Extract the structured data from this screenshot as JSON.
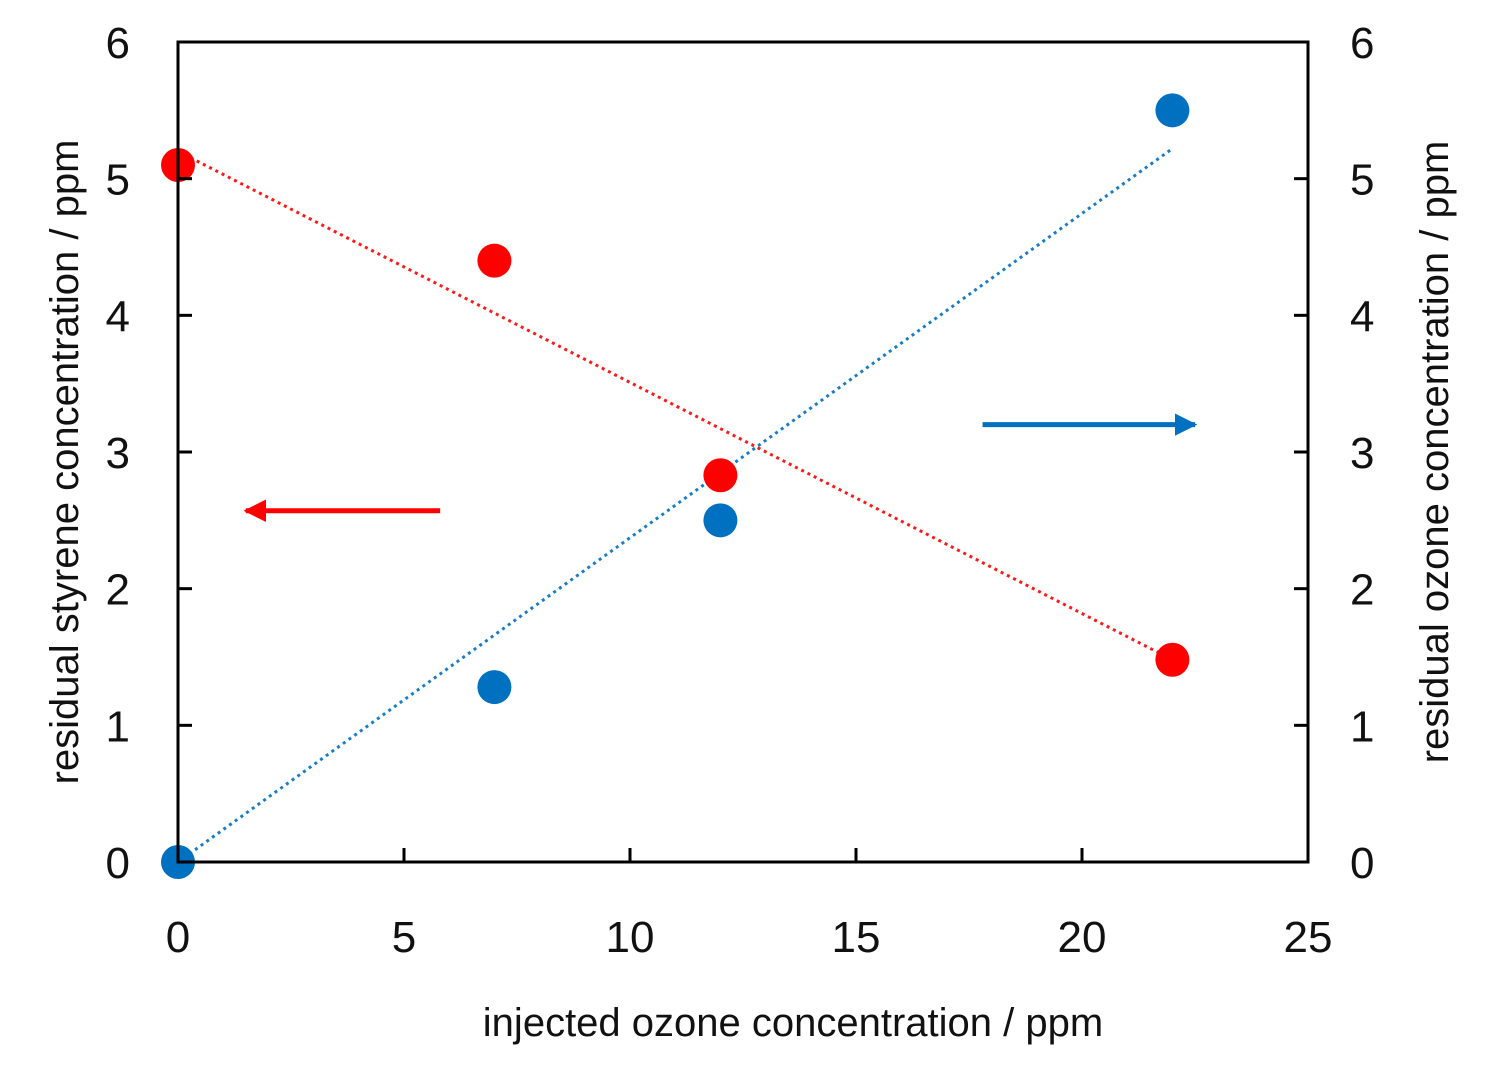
{
  "chart_data": {
    "type": "scatter",
    "title": "",
    "xlabel": "injected ozone concentration / ppm",
    "ylabel_left": "residual styrene concentration / ppm",
    "ylabel_right": "residual ozone concentration / ppm",
    "xlim": [
      0,
      25
    ],
    "ylim_left": [
      0,
      6
    ],
    "ylim_right": [
      0,
      6
    ],
    "x_ticks": [
      "0",
      "5",
      "10",
      "15",
      "20",
      "25"
    ],
    "y_ticks_left": [
      "0",
      "1",
      "2",
      "3",
      "4",
      "5",
      "6"
    ],
    "y_ticks_right": [
      "0",
      "1",
      "2",
      "3",
      "4",
      "5",
      "6"
    ],
    "grid": false,
    "series": [
      {
        "name": "residual styrene",
        "axis": "left",
        "color": "#ff0000",
        "x": [
          0,
          7,
          12,
          22
        ],
        "y": [
          5.1,
          4.4,
          2.83,
          1.48
        ],
        "trendline": {
          "style": "dotted",
          "x": [
            0,
            22
          ],
          "y": [
            5.2,
            1.48
          ]
        },
        "indicator_arrow": {
          "direction": "left",
          "from": [
            5.8,
            2.57
          ],
          "to": [
            1.5,
            2.57
          ]
        }
      },
      {
        "name": "residual ozone",
        "axis": "right",
        "color": "#0070c0",
        "x": [
          0,
          7,
          12,
          22
        ],
        "y": [
          0,
          1.28,
          2.5,
          5.5
        ],
        "trendline": {
          "style": "dotted",
          "x": [
            0,
            22
          ],
          "y": [
            0,
            5.22
          ]
        },
        "indicator_arrow": {
          "direction": "right",
          "from": [
            17.8,
            3.2
          ],
          "to": [
            22.5,
            3.2
          ]
        }
      }
    ]
  }
}
